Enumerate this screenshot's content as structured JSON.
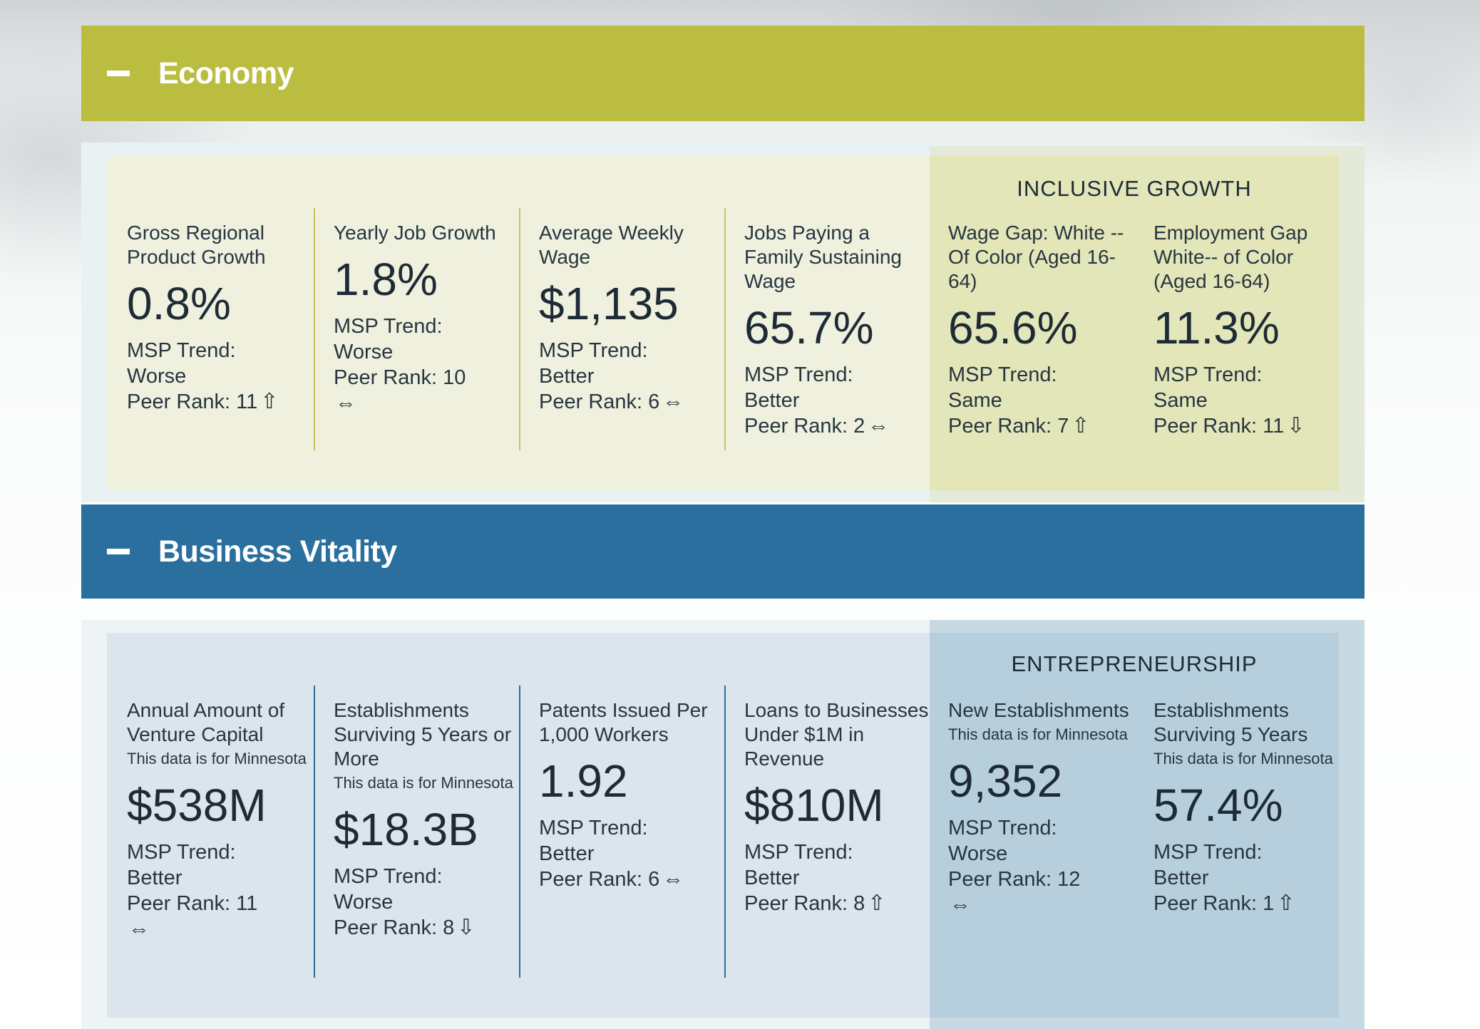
{
  "colors": {
    "economy": "#bbbd41",
    "business_vitality": "#2a6f9e"
  },
  "sections": [
    {
      "title": "Economy",
      "toggle_icon": "minus-icon",
      "highlight_title": "INCLUSIVE GROWTH",
      "metrics": [
        {
          "label": "Gross Regional Product Growth",
          "note": "",
          "value": "0.8%",
          "trend_label": "MSP Trend:",
          "trend": "Worse",
          "rank": "Peer Rank: 11",
          "icon": "⇧",
          "icon_name": "up-arrow-icon"
        },
        {
          "label": "Yearly Job Growth",
          "note": "",
          "value": "1.8%",
          "trend_label": "MSP Trend:",
          "trend": "Worse",
          "rank": "Peer Rank: 10",
          "icon": "⇔",
          "icon_name": "left-right-arrow-icon"
        },
        {
          "label": "Average Weekly Wage",
          "note": "",
          "value": "$1,135",
          "trend_label": "MSP Trend:",
          "trend": "Better",
          "rank": "Peer Rank: 6",
          "icon": "⇔",
          "icon_name": "left-right-arrow-icon"
        },
        {
          "label": "Jobs Paying a Family Sustaining Wage",
          "note": "",
          "value": "65.7%",
          "trend_label": "MSP Trend:",
          "trend": "Better",
          "rank": "Peer Rank: 2",
          "icon": "⇔",
          "icon_name": "left-right-arrow-icon"
        },
        {
          "label": "Wage Gap: White -- Of Color (Aged 16-64)",
          "note": "",
          "value": "65.6%",
          "trend_label": "MSP Trend:",
          "trend": "Same",
          "rank": "Peer Rank: 7",
          "icon": "⇧",
          "icon_name": "up-arrow-icon"
        },
        {
          "label": "Employment Gap White-- of Color (Aged 16-64)",
          "note": "",
          "value": "11.3%",
          "trend_label": "MSP Trend:",
          "trend": "Same",
          "rank": "Peer Rank: 11",
          "icon": "⇩",
          "icon_name": "down-arrow-icon"
        }
      ]
    },
    {
      "title": "Business Vitality",
      "toggle_icon": "minus-icon",
      "highlight_title": "ENTREPRENEURSHIP",
      "metrics": [
        {
          "label": "Annual Amount of Venture Capital",
          "note": "This data is for Minnesota",
          "value": "$538M",
          "trend_label": "MSP Trend:",
          "trend": "Better",
          "rank": "Peer Rank: 11",
          "icon": "⇔",
          "icon_name": "left-right-arrow-icon"
        },
        {
          "label": "Establishments Surviving 5 Years or More",
          "note": "This data is for Minnesota",
          "value": "$18.3B",
          "trend_label": "MSP Trend:",
          "trend": "Worse",
          "rank": "Peer Rank: 8",
          "icon": "⇩",
          "icon_name": "down-arrow-icon"
        },
        {
          "label": "Patents Issued Per 1,000 Workers",
          "note": "",
          "value": "1.92",
          "trend_label": "MSP Trend:",
          "trend": "Better",
          "rank": "Peer Rank: 6",
          "icon": "⇔",
          "icon_name": "left-right-arrow-icon"
        },
        {
          "label": "Loans to Businesses Under $1M in Revenue",
          "note": "",
          "value": "$810M",
          "trend_label": "MSP Trend:",
          "trend": "Better",
          "rank": "Peer Rank: 8",
          "icon": "⇧",
          "icon_name": "up-arrow-icon"
        },
        {
          "label": "New Establishments",
          "note": "This data is for Minnesota",
          "value": "9,352",
          "trend_label": "MSP Trend:",
          "trend": "Worse",
          "rank": "Peer Rank: 12",
          "icon": "⇔",
          "icon_name": "left-right-arrow-icon"
        },
        {
          "label": "Establishments Surviving 5 Years",
          "note": "This data is for Minnesota",
          "value": "57.4%",
          "trend_label": "MSP Trend:",
          "trend": "Better",
          "rank": "Peer Rank: 1",
          "icon": "⇧",
          "icon_name": "up-arrow-icon"
        }
      ]
    }
  ]
}
